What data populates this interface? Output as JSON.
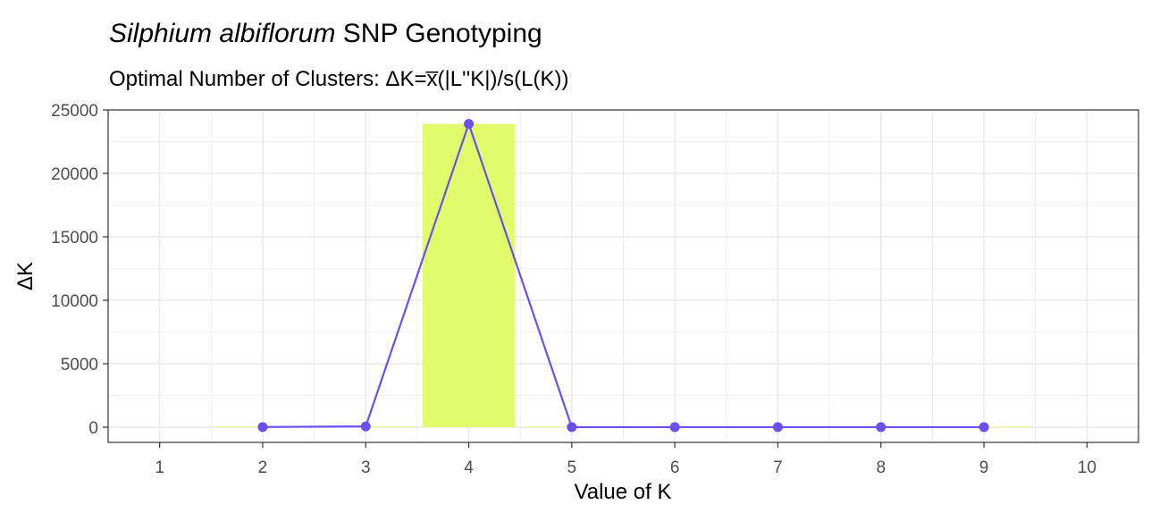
{
  "title": {
    "italic": "Silphium albiflorum",
    "rest": " SNP Genotyping"
  },
  "subtitle": "Optimal Number of Clusters: ΔK=x̅(|L''K|)/s(L(K))",
  "colors": {
    "bar": "#e1fb6a",
    "line": "#6a4ff2",
    "grid": "#ebebeb",
    "panel_border": "#333333"
  },
  "chart_data": {
    "type": "bar+line",
    "title": "Silphium albiflorum SNP Genotyping",
    "subtitle": "Optimal Number of Clusters: ΔK=x̅(|L''K|)/s(L(K))",
    "xlabel": "Value of K",
    "ylabel": "ΔK",
    "x_ticks": [
      1,
      2,
      3,
      4,
      5,
      6,
      7,
      8,
      9,
      10
    ],
    "y_ticks": [
      0,
      5000,
      10000,
      15000,
      20000,
      25000
    ],
    "xlim": [
      0.5,
      10.5
    ],
    "ylim": [
      -1200,
      25000
    ],
    "grid": true,
    "series": [
      {
        "values": [
          {
            "k": 2,
            "delta_k": 10
          },
          {
            "k": 3,
            "delta_k": 60
          },
          {
            "k": 4,
            "delta_k": 23900
          },
          {
            "k": 5,
            "delta_k": 5
          },
          {
            "k": 6,
            "delta_k": 3
          },
          {
            "k": 7,
            "delta_k": 3
          },
          {
            "k": 8,
            "delta_k": 2
          },
          {
            "k": 9,
            "delta_k": 2
          }
        ]
      }
    ]
  }
}
